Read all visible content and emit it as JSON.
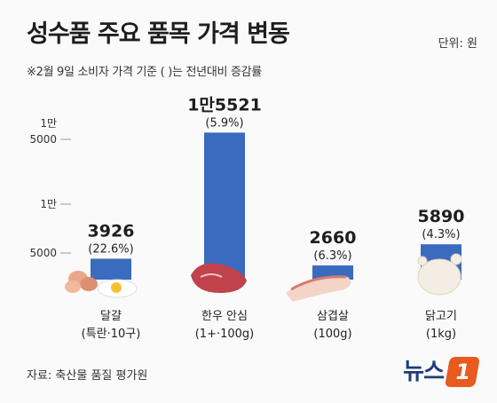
{
  "header": {
    "title": "성수품 주요 품목 가격 변동",
    "unit": "단위: 원",
    "subtitle": "※2월 9일 소비자 가격 기준  ( )는 전년대비 증감률"
  },
  "footer": {
    "source": "자료: 축산물 품질 평가원",
    "logo_text": "뉴스",
    "logo_mark": "1"
  },
  "colors": {
    "bar": "#3a6bbf",
    "axis": "#999999"
  },
  "chart_data": {
    "type": "bar",
    "title": "성수품 주요 품목 가격 변동",
    "ylabel": "",
    "y_axis_break": true,
    "y_ticks": [
      {
        "label": "5000",
        "value": 5000
      },
      {
        "label": "1만",
        "value": 10000
      },
      {
        "label": "1만\n5000",
        "value": 15000
      }
    ],
    "categories": [
      {
        "name": "달걀",
        "detail": "(특란·10구)"
      },
      {
        "name": "한우 안심",
        "detail": "(1+·100g)"
      },
      {
        "name": "삼겹살",
        "detail": "(100g)"
      },
      {
        "name": "닭고기",
        "detail": "(1kg)"
      }
    ],
    "values": [
      3926,
      15521,
      2660,
      5890
    ],
    "value_labels": [
      "3926",
      "1만5521",
      "2660",
      "5890"
    ],
    "change_labels": [
      "(22.6%)",
      "(5.9%)",
      "(6.3%)",
      "(4.3%)"
    ],
    "change_pct": [
      22.6,
      5.9,
      6.3,
      4.3
    ]
  }
}
